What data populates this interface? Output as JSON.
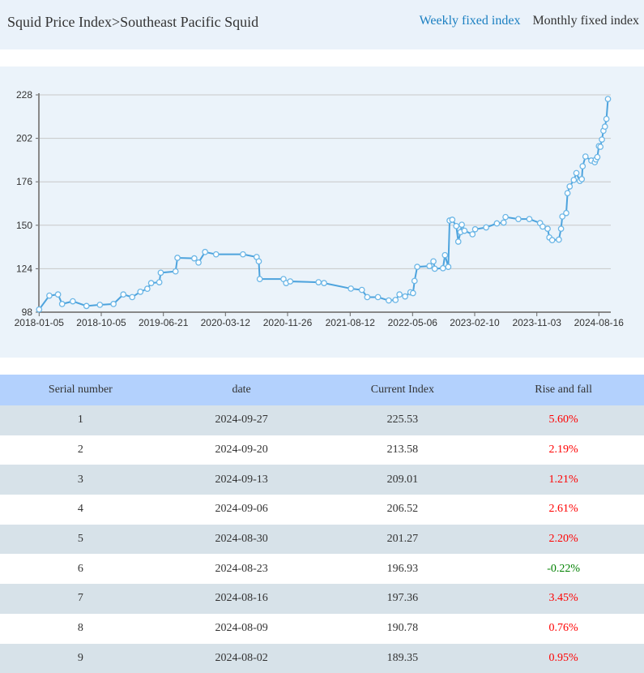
{
  "header": {
    "breadcrumb": "Squid Price Index>Southeast Pacific Squid",
    "tabs": [
      {
        "label": "Weekly fixed index",
        "active": true
      },
      {
        "label": "Monthly fixed index",
        "active": false
      }
    ]
  },
  "colors": {
    "accent": "#1a7fc1",
    "line": "#4da3dd",
    "rise": "#ff0000",
    "fall": "#008000",
    "table_header": "#b3d1fd",
    "row_alt": "#d7e2e9"
  },
  "chart_data": {
    "type": "line",
    "title": "",
    "xlabel": "",
    "ylabel": "",
    "ylim": [
      98,
      228
    ],
    "yticks": [
      98,
      124,
      150,
      176,
      202,
      228
    ],
    "xticks": [
      "2018-01-05",
      "2018-10-05",
      "2019-06-21",
      "2020-03-12",
      "2020-11-26",
      "2021-08-12",
      "2022-05-06",
      "2023-02-10",
      "2023-11-03",
      "2024-08-16"
    ],
    "grid": true,
    "legend": "none",
    "series": [
      {
        "points": [
          [
            "2018-01-05",
            99.6
          ],
          [
            "2018-02-19",
            107.9
          ],
          [
            "2018-03-29",
            108.6
          ],
          [
            "2018-04-16",
            102.9
          ],
          [
            "2018-06-02",
            104.5
          ],
          [
            "2018-08-01",
            101.7
          ],
          [
            "2018-09-29",
            102.4
          ],
          [
            "2018-11-25",
            102.9
          ],
          [
            "2019-01-05",
            108.6
          ],
          [
            "2019-02-11",
            107.0
          ],
          [
            "2019-03-17",
            110.2
          ],
          [
            "2019-04-15",
            112.0
          ],
          [
            "2019-05-01",
            115.4
          ],
          [
            "2019-06-04",
            115.9
          ],
          [
            "2019-06-10",
            121.6
          ],
          [
            "2019-08-12",
            122.4
          ],
          [
            "2019-08-20",
            130.5
          ],
          [
            "2019-10-31",
            130.2
          ],
          [
            "2019-11-18",
            127.7
          ],
          [
            "2019-12-16",
            134.0
          ],
          [
            "2020-02-01",
            132.6
          ],
          [
            "2020-05-24",
            132.6
          ],
          [
            "2020-07-20",
            131.0
          ],
          [
            "2020-07-29",
            128.4
          ],
          [
            "2020-08-02",
            117.8
          ],
          [
            "2020-11-09",
            117.8
          ],
          [
            "2020-11-20",
            115.4
          ],
          [
            "2020-12-07",
            116.4
          ],
          [
            "2021-04-03",
            115.9
          ],
          [
            "2021-04-26",
            115.4
          ],
          [
            "2021-08-15",
            112.1
          ],
          [
            "2021-10-01",
            111.3
          ],
          [
            "2021-10-24",
            107.0
          ],
          [
            "2021-12-09",
            107.0
          ],
          [
            "2022-01-24",
            105.0
          ],
          [
            "2022-02-22",
            105.3
          ],
          [
            "2022-03-11",
            108.6
          ],
          [
            "2022-04-04",
            107.4
          ],
          [
            "2022-04-27",
            109.9
          ],
          [
            "2022-05-08",
            109.4
          ],
          [
            "2022-05-15",
            116.7
          ],
          [
            "2022-05-27",
            125.1
          ],
          [
            "2022-07-21",
            125.6
          ],
          [
            "2022-08-08",
            128.4
          ],
          [
            "2022-08-14",
            124.0
          ],
          [
            "2022-09-20",
            124.3
          ],
          [
            "2022-09-29",
            132.1
          ],
          [
            "2022-10-14",
            125.1
          ],
          [
            "2022-10-20",
            152.8
          ],
          [
            "2022-11-01",
            153.3
          ],
          [
            "2022-11-19",
            149.5
          ],
          [
            "2022-11-28",
            140.2
          ],
          [
            "2022-12-08",
            145.9
          ],
          [
            "2022-12-14",
            150.3
          ],
          [
            "2022-12-26",
            146.7
          ],
          [
            "2023-01-31",
            144.6
          ],
          [
            "2023-02-12",
            147.6
          ],
          [
            "2023-03-31",
            148.7
          ],
          [
            "2023-05-16",
            151.1
          ],
          [
            "2023-06-14",
            151.6
          ],
          [
            "2023-06-22",
            154.9
          ],
          [
            "2023-08-16",
            153.7
          ],
          [
            "2023-10-02",
            153.7
          ],
          [
            "2023-11-18",
            151.3
          ],
          [
            "2023-11-30",
            149.2
          ],
          [
            "2023-12-23",
            147.9
          ],
          [
            "2023-12-31",
            142.7
          ],
          [
            "2024-01-13",
            141.1
          ],
          [
            "2024-02-13",
            141.4
          ],
          [
            "2024-02-23",
            147.9
          ],
          [
            "2024-02-29",
            155.2
          ],
          [
            "2024-03-18",
            157.3
          ],
          [
            "2024-03-24",
            169.2
          ],
          [
            "2024-04-03",
            173.2
          ],
          [
            "2024-04-22",
            177.1
          ],
          [
            "2024-05-04",
            181.2
          ],
          [
            "2024-05-20",
            176.5
          ],
          [
            "2024-05-29",
            177.6
          ],
          [
            "2024-06-02",
            185.3
          ],
          [
            "2024-06-15",
            191.1
          ],
          [
            "2024-07-12",
            188.7
          ],
          [
            "2024-07-28",
            187.7
          ],
          [
            "2024-08-02",
            189.35
          ],
          [
            "2024-08-09",
            190.78
          ],
          [
            "2024-08-16",
            197.36
          ],
          [
            "2024-08-23",
            196.93
          ],
          [
            "2024-08-30",
            201.27
          ],
          [
            "2024-09-06",
            206.52
          ],
          [
            "2024-09-13",
            209.01
          ],
          [
            "2024-09-20",
            213.58
          ],
          [
            "2024-09-27",
            225.53
          ]
        ]
      }
    ]
  },
  "table": {
    "headers": [
      "Serial number",
      "date",
      "Current Index",
      "Rise and fall"
    ],
    "rows": [
      {
        "serial": "1",
        "date": "2024-09-27",
        "index": "225.53",
        "change": "5.60%",
        "dir": "up"
      },
      {
        "serial": "2",
        "date": "2024-09-20",
        "index": "213.58",
        "change": "2.19%",
        "dir": "up"
      },
      {
        "serial": "3",
        "date": "2024-09-13",
        "index": "209.01",
        "change": "1.21%",
        "dir": "up"
      },
      {
        "serial": "4",
        "date": "2024-09-06",
        "index": "206.52",
        "change": "2.61%",
        "dir": "up"
      },
      {
        "serial": "5",
        "date": "2024-08-30",
        "index": "201.27",
        "change": "2.20%",
        "dir": "up"
      },
      {
        "serial": "6",
        "date": "2024-08-23",
        "index": "196.93",
        "change": "-0.22%",
        "dir": "down"
      },
      {
        "serial": "7",
        "date": "2024-08-16",
        "index": "197.36",
        "change": "3.45%",
        "dir": "up"
      },
      {
        "serial": "8",
        "date": "2024-08-09",
        "index": "190.78",
        "change": "0.76%",
        "dir": "up"
      },
      {
        "serial": "9",
        "date": "2024-08-02",
        "index": "189.35",
        "change": "0.95%",
        "dir": "up"
      }
    ]
  }
}
